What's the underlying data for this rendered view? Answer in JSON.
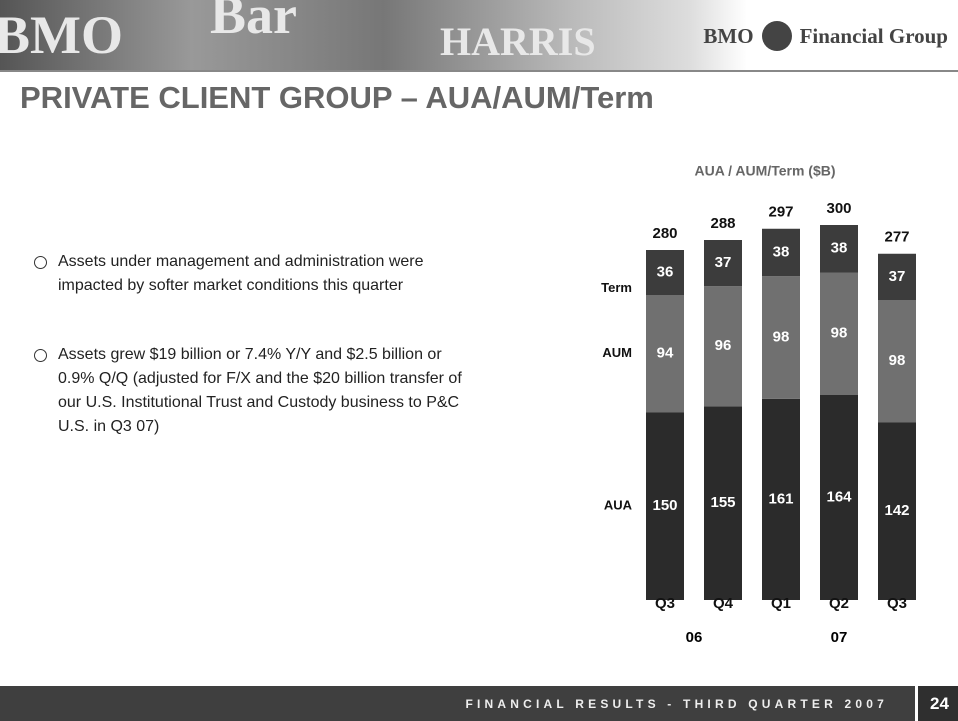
{
  "header": {
    "logo": [
      "BMO",
      "Financial Group"
    ],
    "banner_text": [
      "BMO",
      "Bar",
      "HARRIS"
    ],
    "title": "PRIVATE CLIENT GROUP – AUA/AUM/Term"
  },
  "bullets": [
    "Assets under management and administration were impacted by softer market conditions this quarter",
    "Assets grew $19 billion or 7.4% Y/Y and $2.5 billion or 0.9% Q/Q (adjusted for F/X and the $20 billion transfer of our U.S. Institutional Trust and Custody business to P&C U.S. in Q3 07)"
  ],
  "chart_data": {
    "type": "stacked_bar",
    "title": "AUA / AUM/Term ($B)",
    "categories": [
      "Q3",
      "Q4",
      "Q1",
      "Q2",
      "Q3"
    ],
    "category_groups": [
      "06",
      "07"
    ],
    "series": [
      {
        "name": "AUA",
        "color": "#2b2b2b",
        "values": [
          150,
          155,
          161,
          164,
          142
        ]
      },
      {
        "name": "AUM",
        "color": "#707070",
        "values": [
          94,
          96,
          98,
          98,
          98
        ]
      },
      {
        "name": "Term",
        "color": "#3c3c3c",
        "values": [
          36,
          37,
          38,
          38,
          37
        ]
      }
    ],
    "totals": [
      280,
      288,
      297,
      300,
      277
    ]
  },
  "footer": {
    "text": "FINANCIAL RESULTS - THIRD QUARTER 2007",
    "page": "24"
  }
}
